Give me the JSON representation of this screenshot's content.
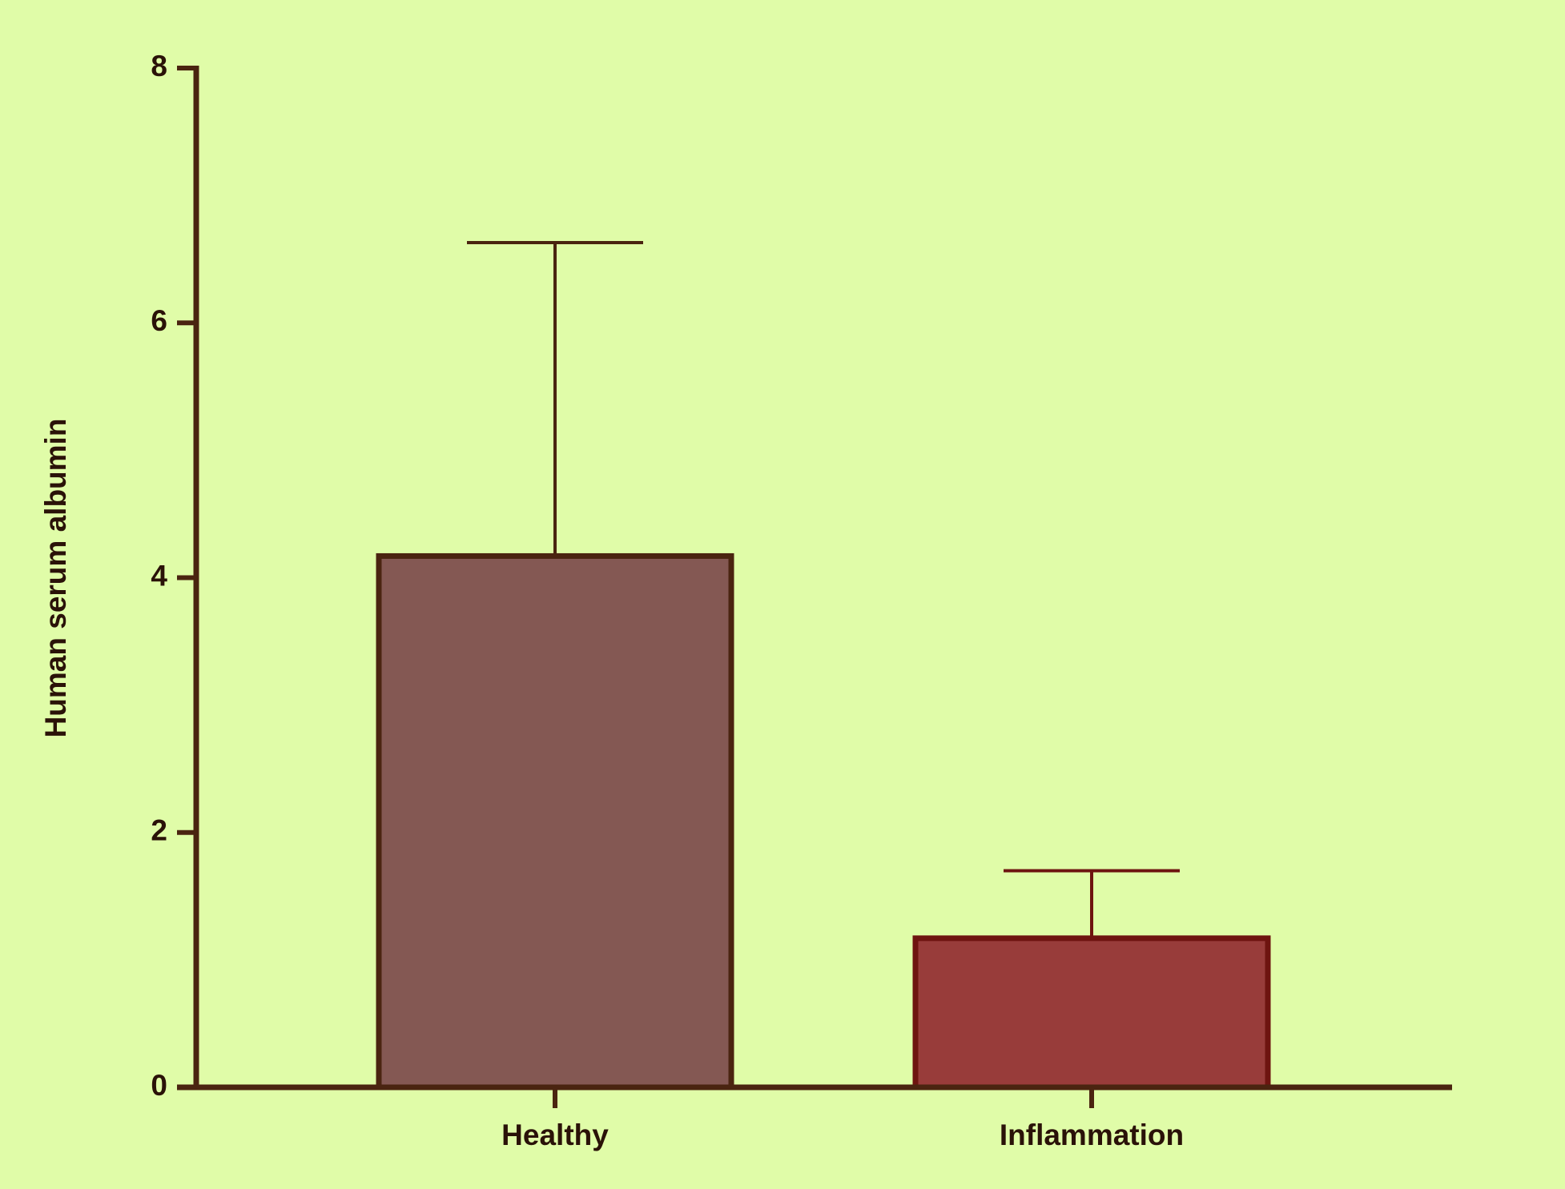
{
  "chart_data": {
    "type": "bar",
    "y_label": "Human serum albumin",
    "categories": [
      "Healthy",
      "Inflammation"
    ],
    "values": [
      4.17,
      1.17
    ],
    "errors": [
      2.46,
      0.53
    ],
    "colors": [
      "#845853",
      "#983c3a"
    ],
    "edge_colors": [
      "#4a2410",
      "#6e1410"
    ],
    "ylim": [
      0,
      8
    ],
    "yticks": [
      0,
      2,
      4,
      6,
      8
    ],
    "background": "#e0fca8",
    "axis_color": "#4a2410"
  }
}
